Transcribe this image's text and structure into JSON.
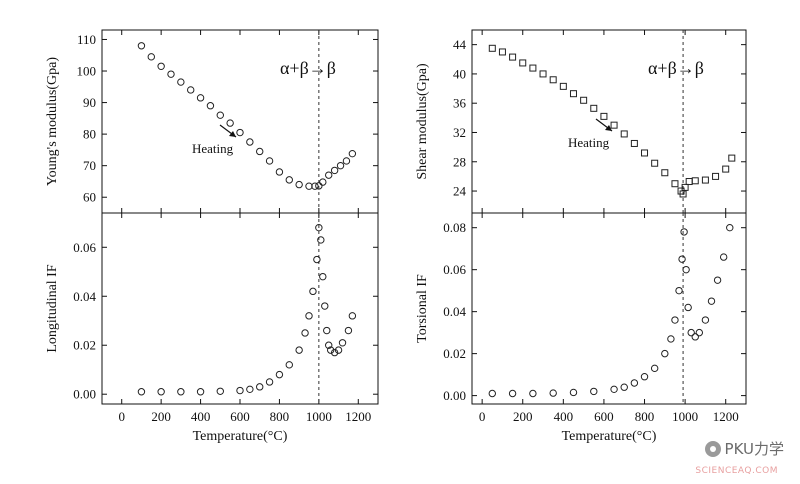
{
  "watermark": {
    "brand": "PKU力学",
    "site": "SCIENCEAQ.COM",
    "icon": "wechat-icon"
  },
  "chart_data": [
    {
      "type": "scatter",
      "panel": "left-top",
      "title": "",
      "xlabel": "",
      "ylabel": "Young's modulus(Gpa)",
      "xlim": [
        -100,
        1300
      ],
      "ylim": [
        55,
        113
      ],
      "xticks": [
        0,
        200,
        400,
        600,
        800,
        1000,
        1200
      ],
      "yticks": [
        60,
        70,
        80,
        90,
        100,
        110
      ],
      "show_x_ticklabels": false,
      "annotation": "α+β→β",
      "annotation2": "Heating",
      "vline": 1000,
      "marker": "open-circle",
      "series": [
        {
          "name": "",
          "x": [
            100,
            150,
            200,
            250,
            300,
            350,
            400,
            450,
            500,
            550,
            600,
            650,
            700,
            750,
            800,
            850,
            900,
            950,
            980,
            1000,
            1020,
            1050,
            1080,
            1110,
            1140,
            1170
          ],
          "values": [
            108,
            104.5,
            101.5,
            99,
            96.5,
            94,
            91.5,
            89,
            86,
            83.5,
            80.5,
            77.5,
            74.5,
            71.5,
            68,
            65.5,
            64,
            63.5,
            63.5,
            63.6,
            64.8,
            67,
            68.5,
            70,
            71.5,
            73.8
          ]
        }
      ]
    },
    {
      "type": "scatter",
      "panel": "left-bottom",
      "title": "",
      "xlabel": "Temperature(°C)",
      "ylabel": "Longitudinal IF",
      "xlim": [
        -100,
        1300
      ],
      "ylim": [
        -0.004,
        0.074
      ],
      "xticks": [
        0,
        200,
        400,
        600,
        800,
        1000,
        1200
      ],
      "yticks": [
        0,
        0.02,
        0.04,
        0.06
      ],
      "ytick_labels": [
        "0.00",
        "0.02",
        "0.04",
        "0.06"
      ],
      "vline": 1000,
      "marker": "open-circle",
      "series": [
        {
          "name": "",
          "x": [
            100,
            200,
            300,
            400,
            500,
            600,
            650,
            700,
            750,
            800,
            850,
            900,
            930,
            950,
            970,
            990,
            1000,
            1010,
            1020,
            1030,
            1040,
            1050,
            1060,
            1080,
            1100,
            1120,
            1150,
            1170
          ],
          "values": [
            0.001,
            0.001,
            0.001,
            0.001,
            0.0012,
            0.0015,
            0.002,
            0.003,
            0.005,
            0.008,
            0.012,
            0.018,
            0.025,
            0.032,
            0.042,
            0.055,
            0.068,
            0.063,
            0.048,
            0.036,
            0.026,
            0.02,
            0.018,
            0.017,
            0.018,
            0.021,
            0.026,
            0.032
          ]
        }
      ]
    },
    {
      "type": "scatter",
      "panel": "right-top",
      "title": "",
      "xlabel": "",
      "ylabel": "Shear modulus(Gpa)",
      "xlim": [
        -50,
        1300
      ],
      "ylim": [
        21,
        46
      ],
      "xticks": [
        0,
        200,
        400,
        600,
        800,
        1000,
        1200
      ],
      "yticks": [
        24,
        28,
        32,
        36,
        40,
        44
      ],
      "show_x_ticklabels": false,
      "annotation": "α+β→β",
      "annotation2": "Heating",
      "vline": 990,
      "marker": "open-square",
      "series": [
        {
          "name": "",
          "x": [
            50,
            100,
            150,
            200,
            250,
            300,
            350,
            400,
            450,
            500,
            550,
            600,
            650,
            700,
            750,
            800,
            850,
            900,
            950,
            980,
            990,
            1000,
            1020,
            1050,
            1100,
            1150,
            1200,
            1230
          ],
          "values": [
            43.5,
            43,
            42.3,
            41.5,
            40.8,
            40,
            39.2,
            38.3,
            37.3,
            36.4,
            35.3,
            34.2,
            33,
            31.8,
            30.5,
            29.2,
            27.8,
            26.5,
            25,
            24,
            23.6,
            24.5,
            25.3,
            25.4,
            25.5,
            26,
            27,
            28.5
          ]
        }
      ]
    },
    {
      "type": "scatter",
      "panel": "right-bottom",
      "title": "",
      "xlabel": "Temperature(°C)",
      "ylabel": "Torsional IF",
      "xlim": [
        -50,
        1300
      ],
      "ylim": [
        -0.004,
        0.087
      ],
      "xticks": [
        0,
        200,
        400,
        600,
        800,
        1000,
        1200
      ],
      "yticks": [
        0,
        0.02,
        0.04,
        0.06,
        0.08
      ],
      "ytick_labels": [
        "0.00",
        "0.02",
        "0.04",
        "0.06",
        "0.08"
      ],
      "vline": 990,
      "marker": "open-circle",
      "series": [
        {
          "name": "",
          "x": [
            50,
            150,
            250,
            350,
            450,
            550,
            650,
            700,
            750,
            800,
            850,
            900,
            930,
            950,
            970,
            985,
            995,
            1005,
            1015,
            1030,
            1050,
            1070,
            1100,
            1130,
            1160,
            1190,
            1220
          ],
          "values": [
            0.001,
            0.001,
            0.001,
            0.0012,
            0.0015,
            0.002,
            0.003,
            0.004,
            0.006,
            0.009,
            0.013,
            0.02,
            0.027,
            0.036,
            0.05,
            0.065,
            0.078,
            0.06,
            0.042,
            0.03,
            0.028,
            0.03,
            0.036,
            0.045,
            0.055,
            0.066,
            0.08
          ]
        }
      ]
    }
  ]
}
